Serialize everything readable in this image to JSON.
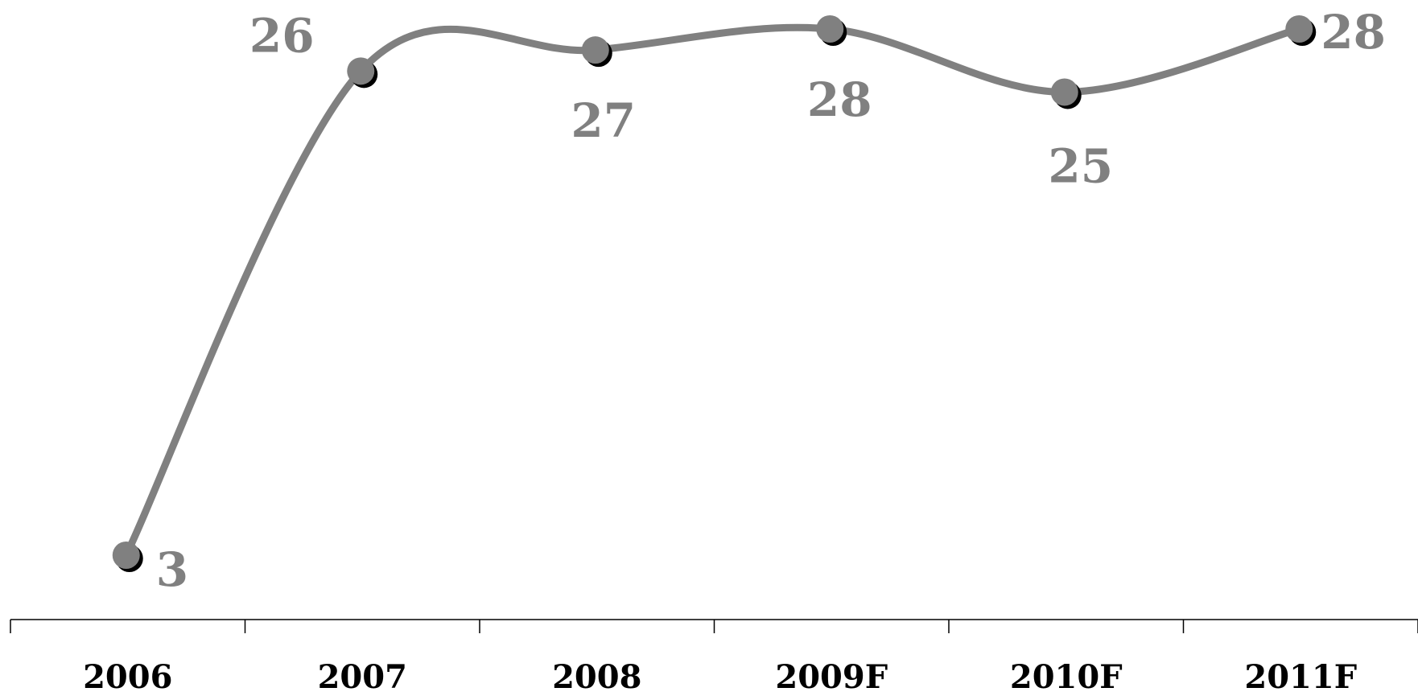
{
  "chart_data": {
    "type": "line",
    "title": "",
    "xlabel": "",
    "ylabel": "",
    "categories": [
      "2006",
      "2007",
      "2008",
      "2009F",
      "2010F",
      "2011F"
    ],
    "series": [
      {
        "values": [
          3,
          26,
          27,
          28,
          25,
          28
        ]
      }
    ],
    "data_labels": [
      "3",
      "26",
      "27",
      "28",
      "25",
      "28"
    ],
    "ylim": [
      0,
      29
    ],
    "smooth": true,
    "grid": false,
    "legend": "none",
    "colors": {
      "line": "#808080",
      "marker": "#808080",
      "marker_shadow": "#000000",
      "label": "#808080",
      "axis": "#000000",
      "tick_label": "#000000"
    }
  }
}
